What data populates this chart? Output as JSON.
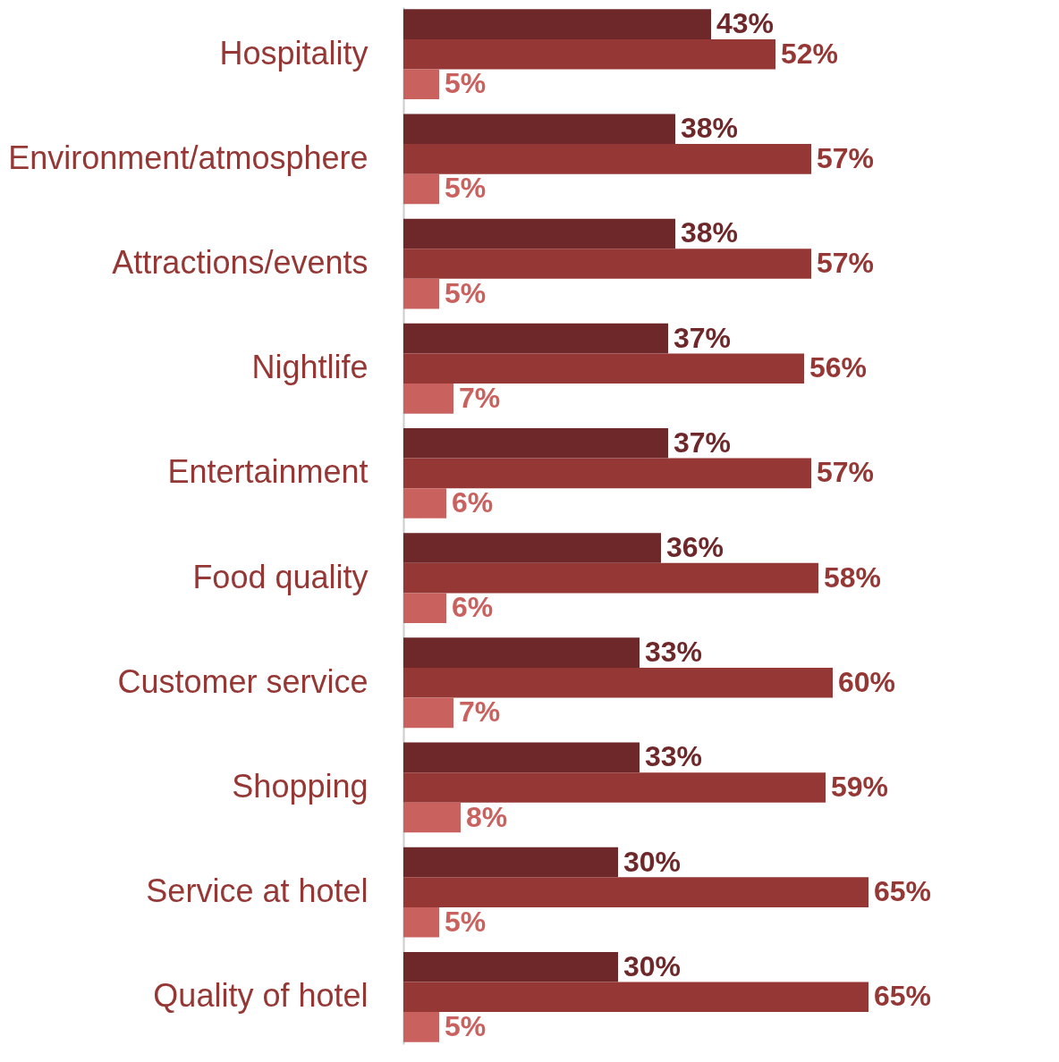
{
  "chart_data": {
    "type": "bar",
    "orientation": "horizontal",
    "categories": [
      "Hospitality",
      "Environment/atmosphere",
      "Attractions/events",
      "Nightlife",
      "Entertainment",
      "Food quality",
      "Customer service",
      "Shopping",
      "Service at hotel",
      "Quality of hotel"
    ],
    "series": [
      {
        "color": "#6e282a",
        "values": [
          43,
          38,
          38,
          37,
          37,
          36,
          33,
          33,
          30,
          30
        ],
        "value_labels": [
          "43%",
          "38%",
          "38%",
          "37%",
          "37%",
          "36%",
          "33%",
          "33%",
          "30%",
          "30%"
        ]
      },
      {
        "color": "#953735",
        "values": [
          52,
          57,
          57,
          56,
          57,
          58,
          60,
          59,
          65,
          65
        ],
        "value_labels": [
          "52%",
          "57%",
          "57%",
          "56%",
          "57%",
          "58%",
          "60%",
          "59%",
          "65%",
          "65%"
        ]
      },
      {
        "color": "#c9625f",
        "values": [
          5,
          5,
          5,
          7,
          6,
          6,
          7,
          8,
          5,
          5
        ],
        "value_labels": [
          "5%",
          "5%",
          "5%",
          "7%",
          "6%",
          "6%",
          "7%",
          "8%",
          "5%",
          "5%"
        ]
      }
    ],
    "legend": false
  }
}
